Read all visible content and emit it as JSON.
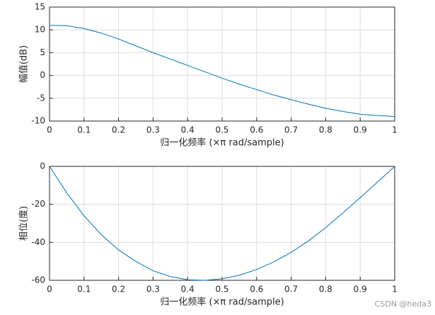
{
  "chart_data": [
    {
      "type": "line",
      "ylabel": "幅值(dB)",
      "xlabel": "归一化频率  (×π rad/sample)",
      "x": [
        0,
        0.05,
        0.1,
        0.15,
        0.2,
        0.25,
        0.3,
        0.35,
        0.4,
        0.45,
        0.5,
        0.55,
        0.6,
        0.65,
        0.7,
        0.75,
        0.8,
        0.85,
        0.9,
        0.95,
        1
      ],
      "values": [
        11,
        10.9,
        10.3,
        9.3,
        8,
        6.5,
        5,
        3.6,
        2.2,
        0.8,
        -0.6,
        -1.9,
        -3.1,
        -4.3,
        -5.3,
        -6.3,
        -7.2,
        -7.9,
        -8.5,
        -8.8,
        -9
      ],
      "color": "#0072bd",
      "xlim": [
        0,
        1
      ],
      "ylim": [
        -10,
        15
      ],
      "xticks": [
        0,
        0.1,
        0.2,
        0.3,
        0.4,
        0.5,
        0.6,
        0.7,
        0.8,
        0.9,
        1
      ],
      "yticks": [
        -10,
        -5,
        0,
        5,
        10,
        15
      ],
      "grid": true
    },
    {
      "type": "line",
      "ylabel": "相位(度)",
      "xlabel": "归一化频率  (×π rad/sample)",
      "x": [
        0,
        0.05,
        0.1,
        0.15,
        0.2,
        0.25,
        0.3,
        0.35,
        0.4,
        0.45,
        0.5,
        0.55,
        0.6,
        0.65,
        0.7,
        0.75,
        0.8,
        0.85,
        0.9,
        0.95,
        1
      ],
      "values": [
        0,
        -14,
        -26,
        -36,
        -44,
        -50,
        -55,
        -58,
        -59.7,
        -60,
        -59.2,
        -57.3,
        -54.3,
        -50.3,
        -45.3,
        -39.3,
        -32.3,
        -24.5,
        -16.5,
        -8.3,
        0
      ],
      "color": "#0072bd",
      "xlim": [
        0,
        1
      ],
      "ylim": [
        -60,
        0
      ],
      "xticks": [
        0,
        0.1,
        0.2,
        0.3,
        0.4,
        0.5,
        0.6,
        0.7,
        0.8,
        0.9,
        1
      ],
      "yticks": [
        -60,
        -40,
        -20,
        0
      ],
      "grid": true
    }
  ],
  "watermark": "CSDN @heda3"
}
